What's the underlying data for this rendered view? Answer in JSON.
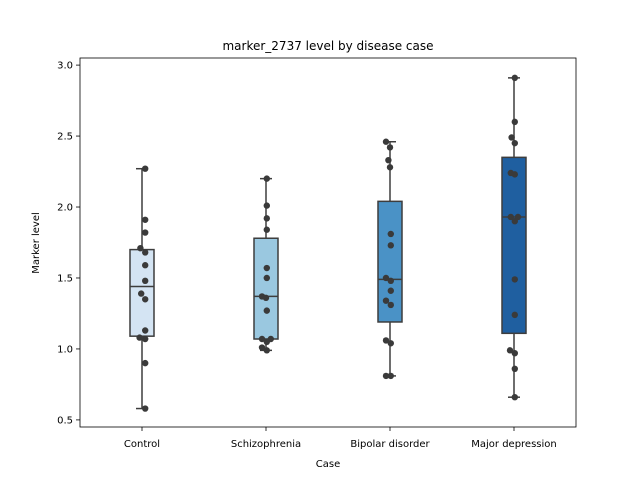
{
  "chart_data": {
    "type": "box",
    "title": "marker_2737 level by disease case",
    "xlabel": "Case",
    "ylabel": "Marker level",
    "ylim": [
      0.45,
      3.05
    ],
    "yticks": [
      0.5,
      1.0,
      1.5,
      2.0,
      2.5,
      3.0
    ],
    "ytick_labels": [
      "0.5",
      "1.0",
      "1.5",
      "2.0",
      "2.5",
      "3.0"
    ],
    "categories": [
      "Control",
      "Schizophrenia",
      "Bipolar disorder",
      "Major depression"
    ],
    "boxes": [
      {
        "category": "Control",
        "color": "#d4e4f3",
        "whislo": 0.58,
        "q1": 1.09,
        "med": 1.44,
        "q3": 1.7,
        "whishi": 2.27
      },
      {
        "category": "Schizophrenia",
        "color": "#9ac8e0",
        "whislo": 0.99,
        "q1": 1.07,
        "med": 1.37,
        "q3": 1.78,
        "whishi": 2.2
      },
      {
        "category": "Bipolar disorder",
        "color": "#4a92c6",
        "whislo": 0.81,
        "q1": 1.19,
        "med": 1.49,
        "q3": 2.04,
        "whishi": 2.46
      },
      {
        "category": "Major depression",
        "color": "#1f5fa0",
        "whislo": 0.66,
        "q1": 1.11,
        "med": 1.93,
        "q3": 2.35,
        "whishi": 2.91
      }
    ],
    "points": [
      [
        {
          "dx": 0.04,
          "y": 2.27
        },
        {
          "dx": 0.04,
          "y": 1.91
        },
        {
          "dx": 0.04,
          "y": 1.82
        },
        {
          "dx": -0.02,
          "y": 1.71
        },
        {
          "dx": 0.04,
          "y": 1.68
        },
        {
          "dx": 0.04,
          "y": 1.59
        },
        {
          "dx": 0.04,
          "y": 1.48
        },
        {
          "dx": -0.01,
          "y": 1.39
        },
        {
          "dx": 0.04,
          "y": 1.35
        },
        {
          "dx": 0.04,
          "y": 1.13
        },
        {
          "dx": -0.03,
          "y": 1.08
        },
        {
          "dx": 0.04,
          "y": 1.07
        },
        {
          "dx": 0.04,
          "y": 0.9
        },
        {
          "dx": 0.04,
          "y": 0.58
        }
      ],
      [
        {
          "dx": 0.01,
          "y": 2.2
        },
        {
          "dx": 0.01,
          "y": 2.01
        },
        {
          "dx": 0.01,
          "y": 1.92
        },
        {
          "dx": 0.01,
          "y": 1.84
        },
        {
          "dx": 0.01,
          "y": 1.57
        },
        {
          "dx": 0.01,
          "y": 1.5
        },
        {
          "dx": -0.05,
          "y": 1.37
        },
        {
          "dx": 0.0,
          "y": 1.36
        },
        {
          "dx": 0.01,
          "y": 1.27
        },
        {
          "dx": -0.05,
          "y": 1.07
        },
        {
          "dx": 0.01,
          "y": 1.05
        },
        {
          "dx": 0.06,
          "y": 1.07
        },
        {
          "dx": -0.05,
          "y": 1.01
        },
        {
          "dx": 0.01,
          "y": 0.99
        }
      ],
      [
        {
          "dx": -0.05,
          "y": 2.46
        },
        {
          "dx": 0.0,
          "y": 2.42
        },
        {
          "dx": -0.02,
          "y": 2.33
        },
        {
          "dx": 0.0,
          "y": 2.28
        },
        {
          "dx": 0.01,
          "y": 1.81
        },
        {
          "dx": 0.01,
          "y": 1.73
        },
        {
          "dx": -0.05,
          "y": 1.5
        },
        {
          "dx": 0.01,
          "y": 1.48
        },
        {
          "dx": 0.01,
          "y": 1.41
        },
        {
          "dx": -0.05,
          "y": 1.34
        },
        {
          "dx": 0.01,
          "y": 1.31
        },
        {
          "dx": -0.05,
          "y": 1.06
        },
        {
          "dx": 0.01,
          "y": 1.04
        },
        {
          "dx": -0.05,
          "y": 0.81
        },
        {
          "dx": 0.01,
          "y": 0.81
        }
      ],
      [
        {
          "dx": 0.01,
          "y": 2.91
        },
        {
          "dx": 0.01,
          "y": 2.6
        },
        {
          "dx": -0.03,
          "y": 2.49
        },
        {
          "dx": 0.01,
          "y": 2.45
        },
        {
          "dx": -0.04,
          "y": 2.24
        },
        {
          "dx": 0.01,
          "y": 2.23
        },
        {
          "dx": -0.04,
          "y": 1.93
        },
        {
          "dx": 0.01,
          "y": 1.9
        },
        {
          "dx": 0.05,
          "y": 1.93
        },
        {
          "dx": 0.01,
          "y": 1.49
        },
        {
          "dx": 0.01,
          "y": 1.24
        },
        {
          "dx": -0.05,
          "y": 0.99
        },
        {
          "dx": 0.01,
          "y": 0.97
        },
        {
          "dx": 0.01,
          "y": 0.86
        },
        {
          "dx": 0.01,
          "y": 0.66
        }
      ]
    ],
    "grid": false,
    "legend": "none"
  }
}
